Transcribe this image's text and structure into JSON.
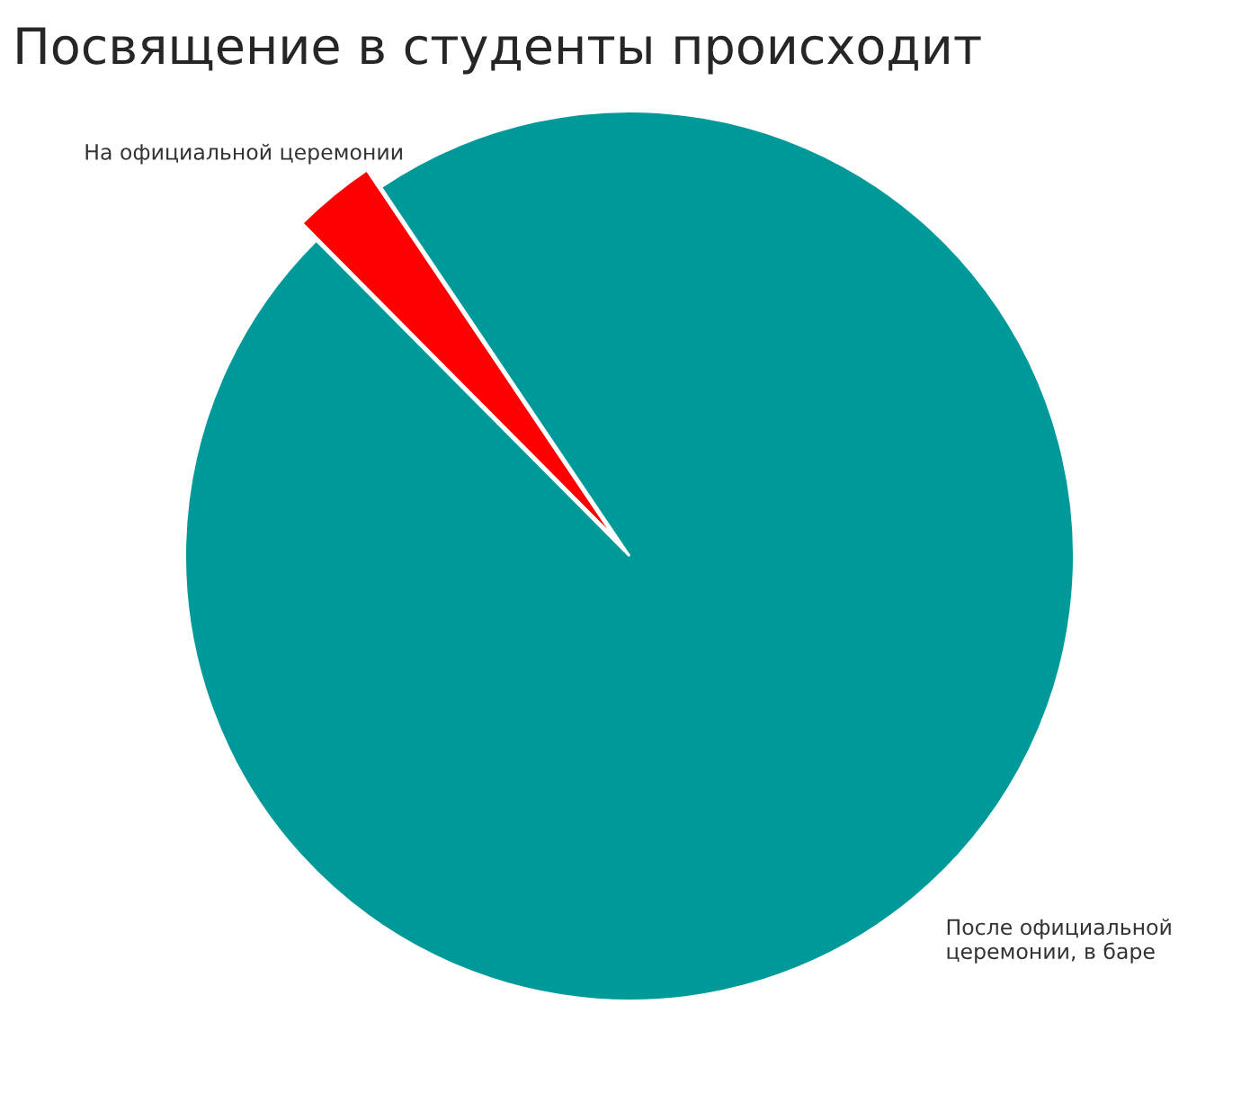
{
  "chart_data": {
    "type": "pie",
    "title": "Посвящение в студенты происходит",
    "categories": [
      "На официальной церемонии",
      "После официальной\nцеремонии, в баре"
    ],
    "values": [
      3,
      97
    ],
    "colors": [
      "#ff0000",
      "#009999"
    ]
  }
}
